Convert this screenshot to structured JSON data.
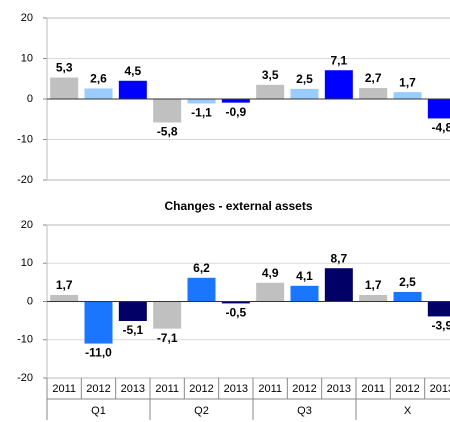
{
  "chart_data": [
    {
      "type": "bar",
      "ylim": [
        -20,
        20
      ],
      "yticks": [
        -20,
        -10,
        0,
        10,
        20
      ],
      "grid": true,
      "series": [
        {
          "color": "#c0c0c0",
          "values": [
            5.3,
            -5.8,
            3.5,
            2.7
          ],
          "value_labels": [
            "5,3",
            "-5,8",
            "3,5",
            "2,7"
          ]
        },
        {
          "color": "#99ccff",
          "values": [
            2.6,
            -1.1,
            2.5,
            1.7
          ],
          "value_labels": [
            "2,6",
            "-1,1",
            "2,5",
            "1,7"
          ]
        },
        {
          "color": "#0000ff",
          "values": [
            4.5,
            -0.9,
            7.1,
            -4.8
          ],
          "value_labels": [
            "4,5",
            "-0,9",
            "7,1",
            "-4,8"
          ]
        }
      ]
    },
    {
      "type": "bar",
      "title": "Changes - external assets",
      "categories": [
        "Q1",
        "Q2",
        "Q3",
        "X"
      ],
      "ylim": [
        -20,
        20
      ],
      "yticks": [
        -20,
        -10,
        0,
        10,
        20
      ],
      "grid": true,
      "series": [
        {
          "name": "2011",
          "color": "#c0c0c0",
          "values": [
            1.7,
            -7.1,
            4.9,
            1.7
          ],
          "value_labels": [
            "1,7",
            "-7,1",
            "4,9",
            "1,7"
          ]
        },
        {
          "name": "2012",
          "color": "#1a75ff",
          "values": [
            -11.0,
            6.2,
            4.1,
            2.5
          ],
          "value_labels": [
            "-11,0",
            "6,2",
            "4,1",
            "2,5"
          ]
        },
        {
          "name": "2013",
          "color": "#000066",
          "values": [
            -5.1,
            -0.5,
            8.7,
            -3.9
          ],
          "value_labels": [
            "-5,1",
            "-0,5",
            "8,7",
            "-3,9"
          ]
        }
      ]
    }
  ]
}
